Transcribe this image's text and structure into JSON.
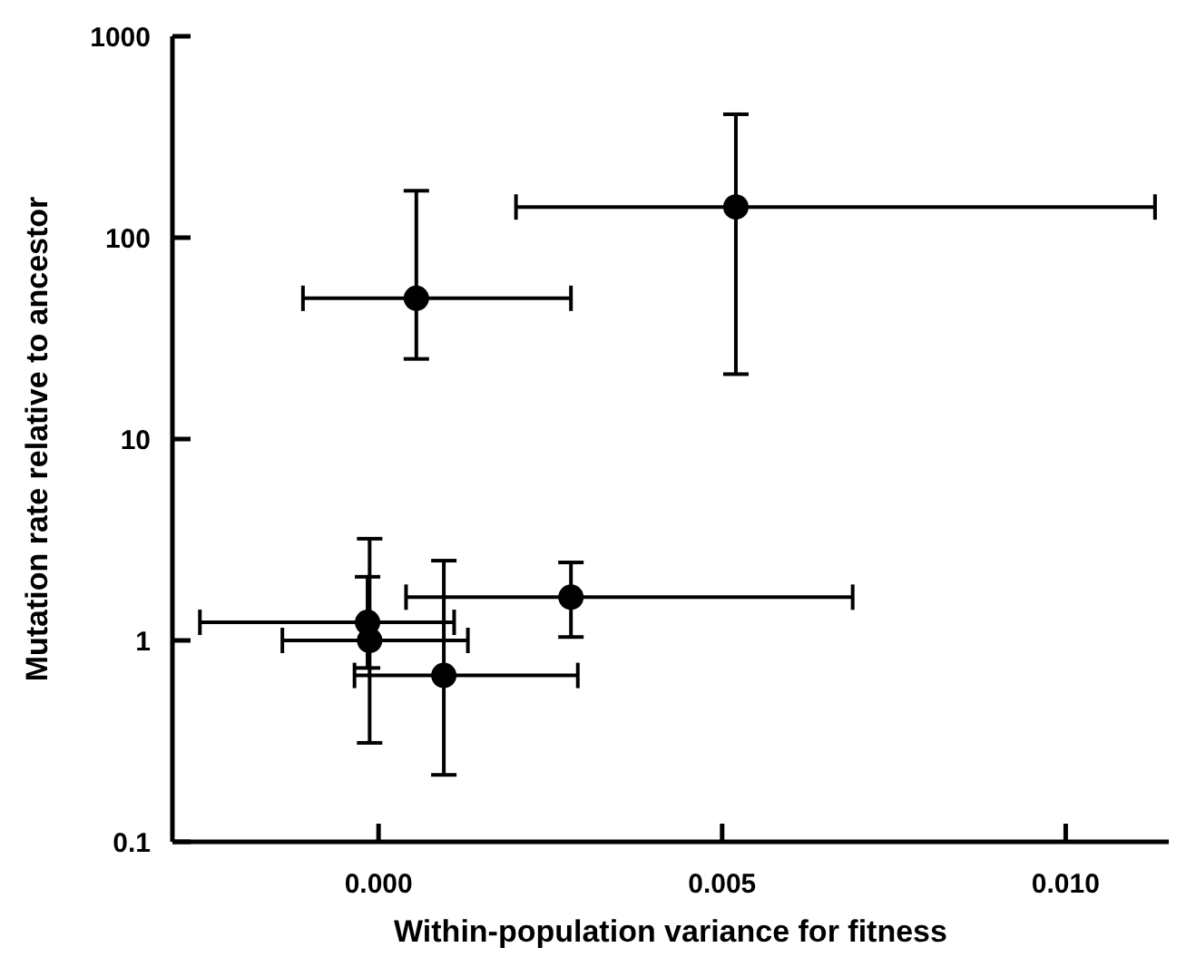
{
  "chart_data": {
    "type": "scatter",
    "xlabel": "Within-population variance for fitness",
    "ylabel": "Mutation rate relative to ancestor",
    "x": [
      0.00055,
      0.0052,
      0.0028,
      -0.00016,
      -0.00013,
      0.00095
    ],
    "values": [
      50,
      142,
      1.64,
      1.23,
      1.0,
      0.67
    ],
    "errors": [
      [
        25,
        171
      ],
      [
        21,
        410
      ],
      [
        1.04,
        2.44
      ],
      [
        0.73,
        2.07
      ],
      [
        0.31,
        3.2
      ],
      [
        0.215,
        2.49
      ]
    ],
    "xerrors": [
      [
        -0.0011,
        0.0028
      ],
      [
        0.002,
        0.0113
      ],
      [
        0.0004,
        0.0069
      ],
      [
        -0.0026,
        0.0011
      ],
      [
        -0.0014,
        0.0013
      ],
      [
        -0.00035,
        0.0029
      ]
    ],
    "color": "#000000",
    "marker": "circle",
    "log": "y",
    "xlim": [
      -0.003,
      0.0115
    ],
    "ylim": [
      0.1,
      1000
    ],
    "xticks": [
      {
        "value": 0,
        "label": "0.000"
      },
      {
        "value": 0.005,
        "label": "0.005"
      },
      {
        "value": 0.01,
        "label": "0.010"
      }
    ],
    "yticks": [
      0.1,
      1,
      10,
      100,
      1000
    ],
    "grid": false
  }
}
